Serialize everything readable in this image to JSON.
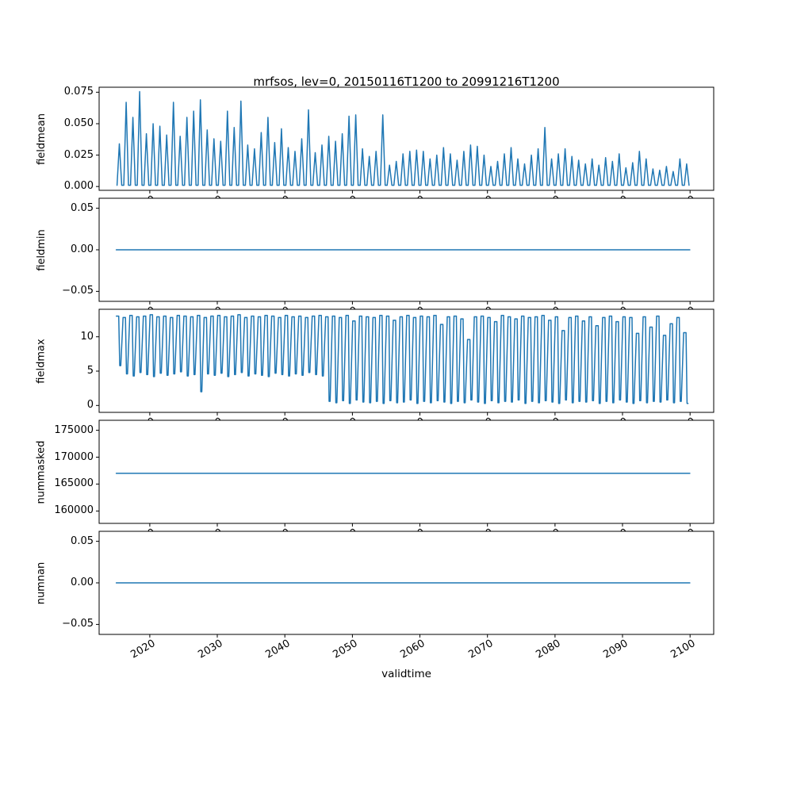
{
  "figure": {
    "title": "mrfsos, lev=0, 20150116T1200 to 20991216T1200",
    "xlabel": "validtime",
    "line_color": "#1f77b4",
    "background": "#ffffff"
  },
  "chart_data": [
    {
      "type": "line",
      "name": "fieldmean",
      "ylabel": "fieldmean",
      "xlim": [
        2012.5,
        2103.5
      ],
      "ylim": [
        -0.003,
        0.079
      ],
      "yticks": [
        0.0,
        0.025,
        0.05,
        0.075
      ],
      "ytick_labels": [
        "0.000",
        "0.025",
        "0.050",
        "0.075"
      ],
      "xticks": [
        2020,
        2030,
        2040,
        2050,
        2060,
        2070,
        2080,
        2090,
        2100
      ],
      "xtick_labels": [
        "2020",
        "2030",
        "2040",
        "2050",
        "2060",
        "2070",
        "2080",
        "2090",
        "2100"
      ],
      "series": [
        {
          "name": "fieldmean",
          "kind": "annual-spikes",
          "start_year": 2015,
          "baseline": 0.001,
          "peaks": [
            0.034,
            0.067,
            0.055,
            0.0755,
            0.042,
            0.05,
            0.048,
            0.041,
            0.067,
            0.04,
            0.055,
            0.06,
            0.069,
            0.045,
            0.038,
            0.036,
            0.06,
            0.047,
            0.068,
            0.033,
            0.03,
            0.043,
            0.055,
            0.035,
            0.046,
            0.031,
            0.028,
            0.038,
            0.061,
            0.027,
            0.033,
            0.04,
            0.036,
            0.042,
            0.056,
            0.057,
            0.03,
            0.024,
            0.028,
            0.057,
            0.017,
            0.02,
            0.026,
            0.028,
            0.029,
            0.028,
            0.022,
            0.025,
            0.031,
            0.026,
            0.021,
            0.028,
            0.033,
            0.032,
            0.025,
            0.016,
            0.02,
            0.026,
            0.031,
            0.022,
            0.018,
            0.025,
            0.03,
            0.047,
            0.022,
            0.026,
            0.03,
            0.024,
            0.021,
            0.018,
            0.022,
            0.017,
            0.023,
            0.02,
            0.026,
            0.015,
            0.019,
            0.028,
            0.022,
            0.014,
            0.013,
            0.016,
            0.012,
            0.022,
            0.018
          ]
        }
      ]
    },
    {
      "type": "line",
      "name": "fieldmin",
      "ylabel": "fieldmin",
      "xlim": [
        2012.5,
        2103.5
      ],
      "ylim": [
        -0.062,
        0.062
      ],
      "yticks": [
        -0.05,
        0.0,
        0.05
      ],
      "ytick_labels": [
        "−0.05",
        "0.00",
        "0.05"
      ],
      "xticks": [
        2020,
        2030,
        2040,
        2050,
        2060,
        2070,
        2080,
        2090,
        2100
      ],
      "xtick_labels": [
        "2020",
        "2030",
        "2040",
        "2050",
        "2060",
        "2070",
        "2080",
        "2090",
        "2100"
      ],
      "series": [
        {
          "name": "fieldmin",
          "kind": "points",
          "points": [
            [
              2015.04,
              0.0
            ],
            [
              2099.96,
              0.0
            ]
          ]
        }
      ]
    },
    {
      "type": "line",
      "name": "fieldmax",
      "ylabel": "fieldmax",
      "xlim": [
        2012.5,
        2103.5
      ],
      "ylim": [
        -1.0,
        14.0
      ],
      "yticks": [
        0,
        5,
        10
      ],
      "ytick_labels": [
        "0",
        "5",
        "10"
      ],
      "xticks": [
        2020,
        2030,
        2040,
        2050,
        2060,
        2070,
        2080,
        2090,
        2100
      ],
      "xtick_labels": [
        "2020",
        "2030",
        "2040",
        "2050",
        "2060",
        "2070",
        "2080",
        "2090",
        "2100"
      ],
      "series": [
        {
          "name": "fieldmax",
          "kind": "annual-square",
          "start_year": 2015,
          "tops": [
            13.0,
            12.8,
            13.1,
            12.9,
            13.0,
            13.2,
            12.9,
            13.0,
            12.8,
            13.1,
            13.0,
            12.9,
            13.1,
            12.8,
            13.0,
            13.1,
            12.9,
            13.0,
            13.2,
            12.8,
            13.0,
            12.9,
            13.1,
            13.0,
            12.8,
            13.1,
            12.9,
            13.0,
            12.8,
            13.0,
            13.1,
            12.9,
            13.0,
            12.8,
            13.1,
            12.3,
            13.0,
            12.9,
            12.8,
            13.1,
            13.0,
            12.4,
            12.9,
            13.1,
            12.8,
            13.0,
            12.9,
            13.1,
            11.8,
            12.9,
            13.0,
            12.6,
            9.6,
            12.9,
            13.0,
            12.8,
            12.2,
            13.1,
            12.9,
            12.6,
            13.0,
            12.8,
            12.9,
            13.1,
            12.4,
            12.9,
            10.9,
            12.8,
            13.0,
            12.3,
            12.9,
            11.6,
            12.8,
            13.0,
            12.2,
            12.9,
            12.8,
            10.5,
            12.9,
            11.4,
            13.0,
            10.2,
            11.9,
            12.8,
            10.6
          ],
          "bottoms": [
            5.8,
            4.6,
            4.3,
            4.8,
            4.5,
            4.2,
            4.7,
            4.4,
            4.6,
            4.9,
            4.3,
            4.5,
            2.0,
            4.6,
            4.4,
            4.7,
            4.2,
            4.5,
            4.8,
            4.3,
            4.6,
            4.4,
            4.2,
            4.7,
            4.5,
            4.3,
            4.6,
            4.4,
            4.8,
            4.5,
            4.3,
            0.6,
            0.4,
            0.7,
            0.3,
            0.8,
            0.5,
            0.4,
            0.6,
            0.3,
            0.7,
            0.4,
            0.5,
            0.8,
            0.3,
            0.6,
            0.4,
            0.7,
            0.5,
            0.3,
            0.6,
            0.4,
            0.8,
            0.5,
            0.3,
            0.7,
            0.4,
            0.6,
            0.5,
            0.8,
            0.3,
            0.6,
            0.4,
            0.7,
            0.5,
            0.3,
            0.8,
            0.4,
            0.6,
            0.5,
            0.7,
            0.3,
            0.6,
            0.4,
            0.8,
            0.5,
            0.3,
            0.7,
            0.4,
            0.6,
            0.5,
            0.8,
            0.4,
            0.6,
            0.3
          ]
        }
      ]
    },
    {
      "type": "line",
      "name": "nummasked",
      "ylabel": "nummasked",
      "xlim": [
        2012.5,
        2103.5
      ],
      "ylim": [
        157700,
        176850
      ],
      "yticks": [
        160000,
        165000,
        170000,
        175000
      ],
      "ytick_labels": [
        "160000",
        "165000",
        "170000",
        "175000"
      ],
      "xticks": [
        2020,
        2030,
        2040,
        2050,
        2060,
        2070,
        2080,
        2090,
        2100
      ],
      "xtick_labels": [
        "2020",
        "2030",
        "2040",
        "2050",
        "2060",
        "2070",
        "2080",
        "2090",
        "2100"
      ],
      "series": [
        {
          "name": "nummasked",
          "kind": "points",
          "points": [
            [
              2015.04,
              167000
            ],
            [
              2099.96,
              167000
            ]
          ]
        }
      ]
    },
    {
      "type": "line",
      "name": "numnan",
      "ylabel": "numnan",
      "xlim": [
        2012.5,
        2103.5
      ],
      "ylim": [
        -0.062,
        0.062
      ],
      "yticks": [
        -0.05,
        0.0,
        0.05
      ],
      "ytick_labels": [
        "−0.05",
        "0.00",
        "0.05"
      ],
      "xticks": [
        2020,
        2030,
        2040,
        2050,
        2060,
        2070,
        2080,
        2090,
        2100
      ],
      "xtick_labels": [
        "2020",
        "2030",
        "2040",
        "2050",
        "2060",
        "2070",
        "2080",
        "2090",
        "2100"
      ],
      "series": [
        {
          "name": "numnan",
          "kind": "points",
          "points": [
            [
              2015.04,
              0.0
            ],
            [
              2099.96,
              0.0
            ]
          ]
        }
      ]
    }
  ]
}
